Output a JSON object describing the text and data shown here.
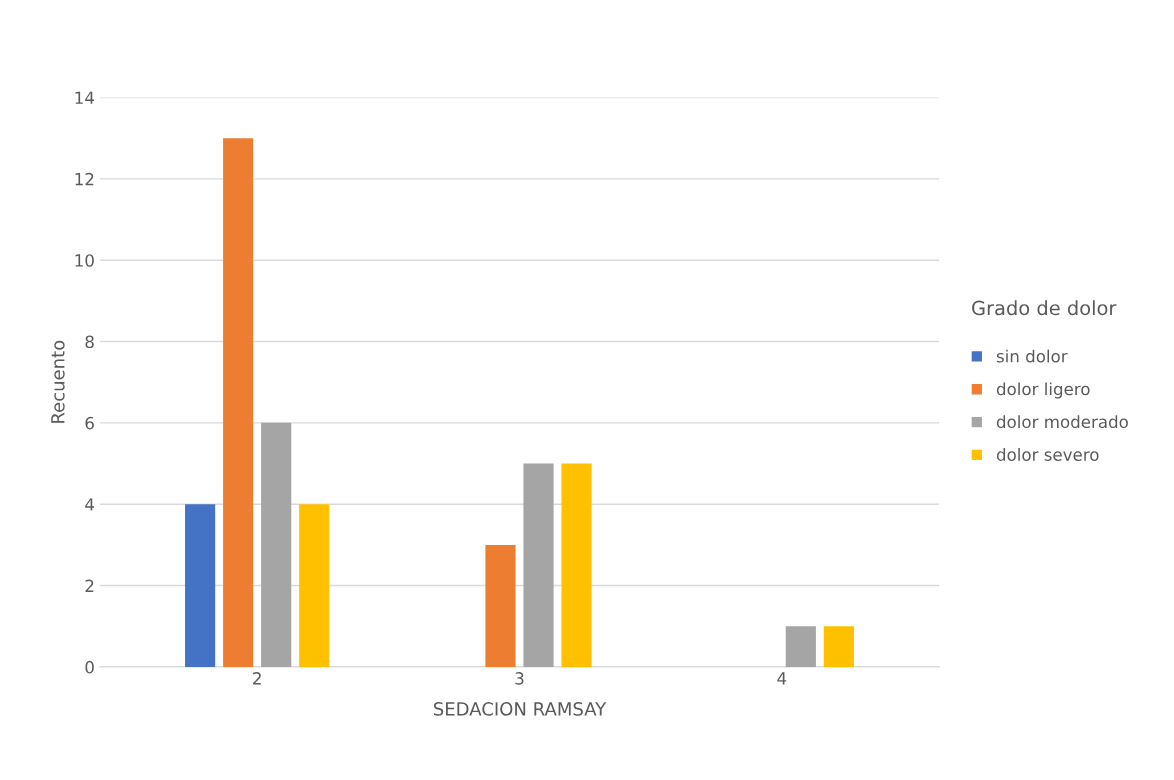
{
  "chart_data": {
    "type": "bar",
    "xlabel": "SEDACION RAMSAY",
    "ylabel": "Recuento",
    "legend_title": "Grado de dolor",
    "categories": [
      "2",
      "3",
      "4"
    ],
    "series": [
      {
        "name": "sin dolor",
        "color": "#4472c4",
        "values": [
          4,
          null,
          null
        ]
      },
      {
        "name": "dolor ligero",
        "color": "#ed7d31",
        "values": [
          13,
          3,
          null
        ]
      },
      {
        "name": "dolor moderado",
        "color": "#a5a5a5",
        "values": [
          6,
          5,
          1
        ]
      },
      {
        "name": "dolor severo",
        "color": "#ffc000",
        "values": [
          4,
          5,
          1
        ]
      }
    ],
    "ylim": [
      0,
      14
    ],
    "yticks": [
      0,
      2,
      4,
      6,
      8,
      10,
      12,
      14
    ],
    "grid": "y",
    "legend": "right"
  }
}
